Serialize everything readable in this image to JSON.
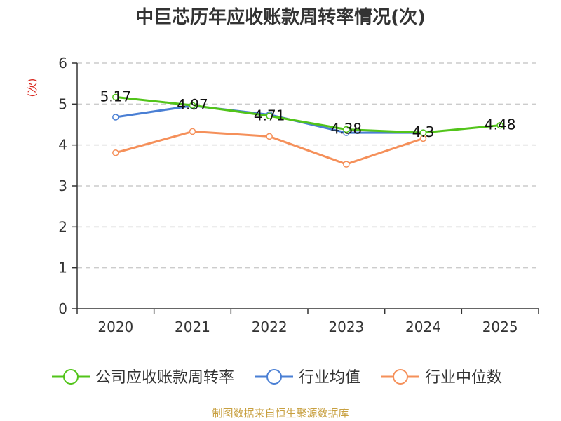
{
  "chart_data": {
    "type": "line",
    "title": "中巨芯历年应收账款周转率情况(次)",
    "ylabel": "(次)",
    "xlabel": "",
    "categories": [
      "2020",
      "2021",
      "2022",
      "2023",
      "2024",
      "2025"
    ],
    "ylim": [
      0,
      6
    ],
    "yticks": [
      0,
      1,
      2,
      3,
      4,
      5,
      6
    ],
    "grid": true,
    "legend_position": "bottom",
    "series": [
      {
        "name": "公司应收账款周转率",
        "color": "#52c41a",
        "values": [
          5.17,
          4.97,
          4.71,
          4.38,
          4.3,
          4.48
        ],
        "labels": [
          "5.17",
          "4.97",
          "4.71",
          "4.38",
          "4.3",
          "4.48"
        ]
      },
      {
        "name": "行业均值",
        "color": "#4a7fd4",
        "values": [
          4.68,
          4.96,
          4.74,
          4.3,
          4.3,
          null
        ]
      },
      {
        "name": "行业中位数",
        "color": "#f5905a",
        "values": [
          3.81,
          4.33,
          4.21,
          3.53,
          4.16,
          null
        ]
      }
    ],
    "source": "制图数据来自恒生聚源数据库"
  },
  "colors": {
    "ylabel": "#d9281f",
    "source": "#c8a040",
    "grid": "#cccccc",
    "axis": "#333333"
  }
}
